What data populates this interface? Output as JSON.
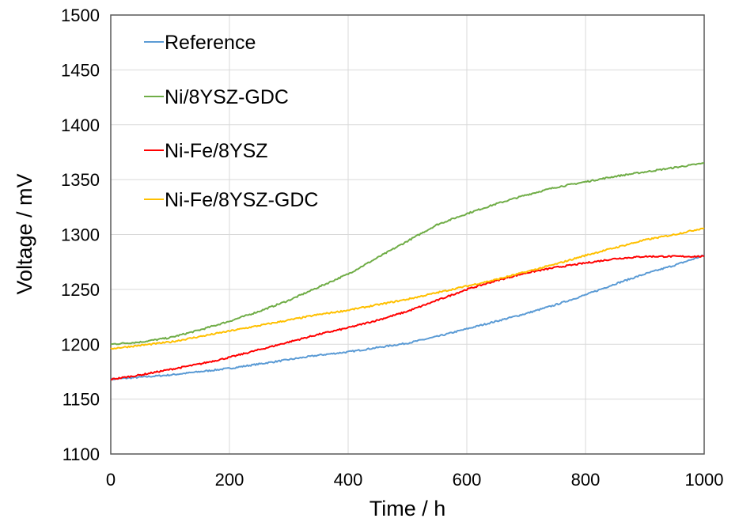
{
  "chart_data": {
    "type": "line",
    "xlabel": "Time / h",
    "ylabel": "Voltage / mV",
    "xlim": [
      0,
      1000
    ],
    "ylim": [
      1100,
      1500
    ],
    "x_ticks": [
      "0",
      "200",
      "400",
      "600",
      "800",
      "1000"
    ],
    "y_ticks": [
      "1100",
      "1150",
      "1200",
      "1250",
      "1300",
      "1350",
      "1400",
      "1450",
      "1500"
    ],
    "grid": true,
    "legend_position": "top-left",
    "x": [
      0,
      50,
      100,
      150,
      200,
      250,
      300,
      350,
      400,
      450,
      500,
      550,
      600,
      650,
      700,
      750,
      800,
      850,
      900,
      950,
      1000
    ],
    "series": [
      {
        "name": "Reference",
        "color": "#5b9bd5",
        "values": [
          1168,
          1170,
          1172,
          1175,
          1178,
          1182,
          1186,
          1190,
          1193,
          1197,
          1201,
          1207,
          1214,
          1221,
          1228,
          1236,
          1245,
          1255,
          1264,
          1272,
          1281
        ]
      },
      {
        "name": "Ni/8YSZ-GDC",
        "color": "#70ad47",
        "values": [
          1200,
          1202,
          1206,
          1213,
          1221,
          1230,
          1240,
          1252,
          1264,
          1279,
          1294,
          1309,
          1319,
          1328,
          1336,
          1343,
          1348,
          1353,
          1357,
          1361,
          1365
        ]
      },
      {
        "name": "Ni-Fe/8YSZ",
        "color": "#ff0000",
        "values": [
          1168,
          1172,
          1177,
          1182,
          1188,
          1195,
          1202,
          1209,
          1215,
          1222,
          1230,
          1240,
          1250,
          1258,
          1265,
          1270,
          1274,
          1278,
          1280,
          1280,
          1280
        ]
      },
      {
        "name": "Ni-Fe/8YSZ-GDC",
        "color": "#ffc000",
        "values": [
          1196,
          1199,
          1202,
          1207,
          1212,
          1217,
          1222,
          1227,
          1231,
          1236,
          1241,
          1247,
          1253,
          1259,
          1266,
          1273,
          1281,
          1288,
          1295,
          1300,
          1306
        ]
      }
    ]
  }
}
